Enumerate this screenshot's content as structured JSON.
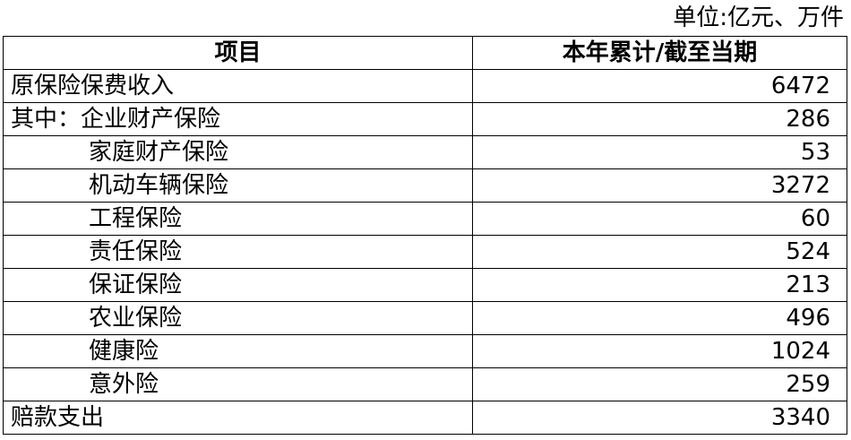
{
  "unit": "单位:亿元、万件",
  "table": {
    "headers": [
      "项目",
      "本年累计/截至当期"
    ],
    "rows": [
      {
        "label": "原保险保费收入",
        "value": "6472",
        "indent": false
      },
      {
        "label": "其中：企业财产保险",
        "value": "286",
        "indent": false
      },
      {
        "label": "家庭财产保险",
        "value": "53",
        "indent": true
      },
      {
        "label": "机动车辆保险",
        "value": "3272",
        "indent": true
      },
      {
        "label": "工程保险",
        "value": "60",
        "indent": true
      },
      {
        "label": "责任保险",
        "value": "524",
        "indent": true
      },
      {
        "label": "保证保险",
        "value": "213",
        "indent": true
      },
      {
        "label": "农业保险",
        "value": "496",
        "indent": true
      },
      {
        "label": "健康险",
        "value": "1024",
        "indent": true
      },
      {
        "label": "意外险",
        "value": "259",
        "indent": true
      },
      {
        "label": "赔款支出",
        "value": "3340",
        "indent": false
      }
    ]
  }
}
